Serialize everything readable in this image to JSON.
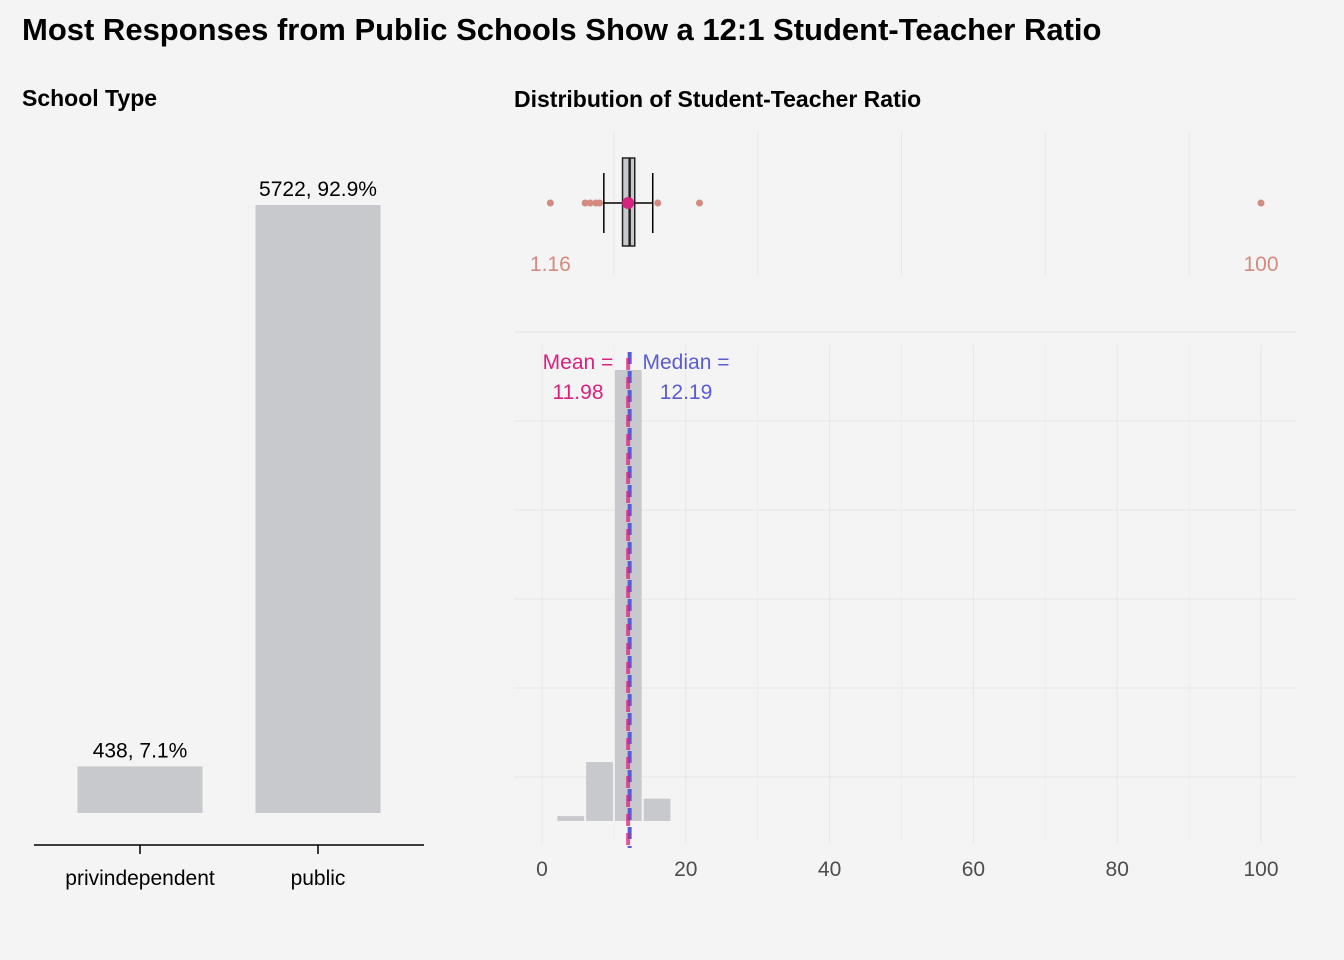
{
  "title": "Most Responses from Public Schools Show a 12:1 Student-Teacher Ratio",
  "colors": {
    "background": "#f4f4f4",
    "bar": "#c8c9cc",
    "mean": "#d6237e",
    "median": "#5b5bd6",
    "outlier": "#d38b7f",
    "grid": "#e6e6e6",
    "axis_text": "#4d4d4d"
  },
  "chart_data": [
    {
      "type": "bar",
      "panel_title": "School Type",
      "categories": [
        "privindependent",
        "public"
      ],
      "values": [
        438,
        5722
      ],
      "labels": [
        "438, 7.1%",
        "5722, 92.9%"
      ],
      "ylim": [
        0,
        5722
      ],
      "grid": false
    },
    {
      "type": "boxplot",
      "panel_title": "Distribution of Student-Teacher Ratio",
      "xlim": [
        0,
        100
      ],
      "stats": {
        "whisker_low": 8.6,
        "q1": 11.2,
        "median": 12.19,
        "q3": 12.9,
        "whisker_high": 15.4,
        "mean": 11.98
      },
      "outliers": [
        1.16,
        6.0,
        6.7,
        7.5,
        8.0,
        16.1,
        21.9,
        100
      ],
      "outlier_labels": [
        "1.16",
        "100"
      ],
      "grid": true
    },
    {
      "type": "histogram",
      "x_ticks": [
        0,
        20,
        40,
        60,
        80,
        100
      ],
      "xlim": [
        0,
        100
      ],
      "bin_width": 4,
      "bins": [
        {
          "start": 2,
          "end": 6,
          "count": 55
        },
        {
          "start": 6,
          "end": 10,
          "count": 660
        },
        {
          "start": 10,
          "end": 14,
          "count": 5050
        },
        {
          "start": 14,
          "end": 18,
          "count": 250
        }
      ],
      "mean": 11.98,
      "median": 12.19,
      "mean_label": [
        "Mean =",
        "11.98"
      ],
      "median_label": [
        "Median =",
        "12.19"
      ],
      "grid": true
    }
  ]
}
